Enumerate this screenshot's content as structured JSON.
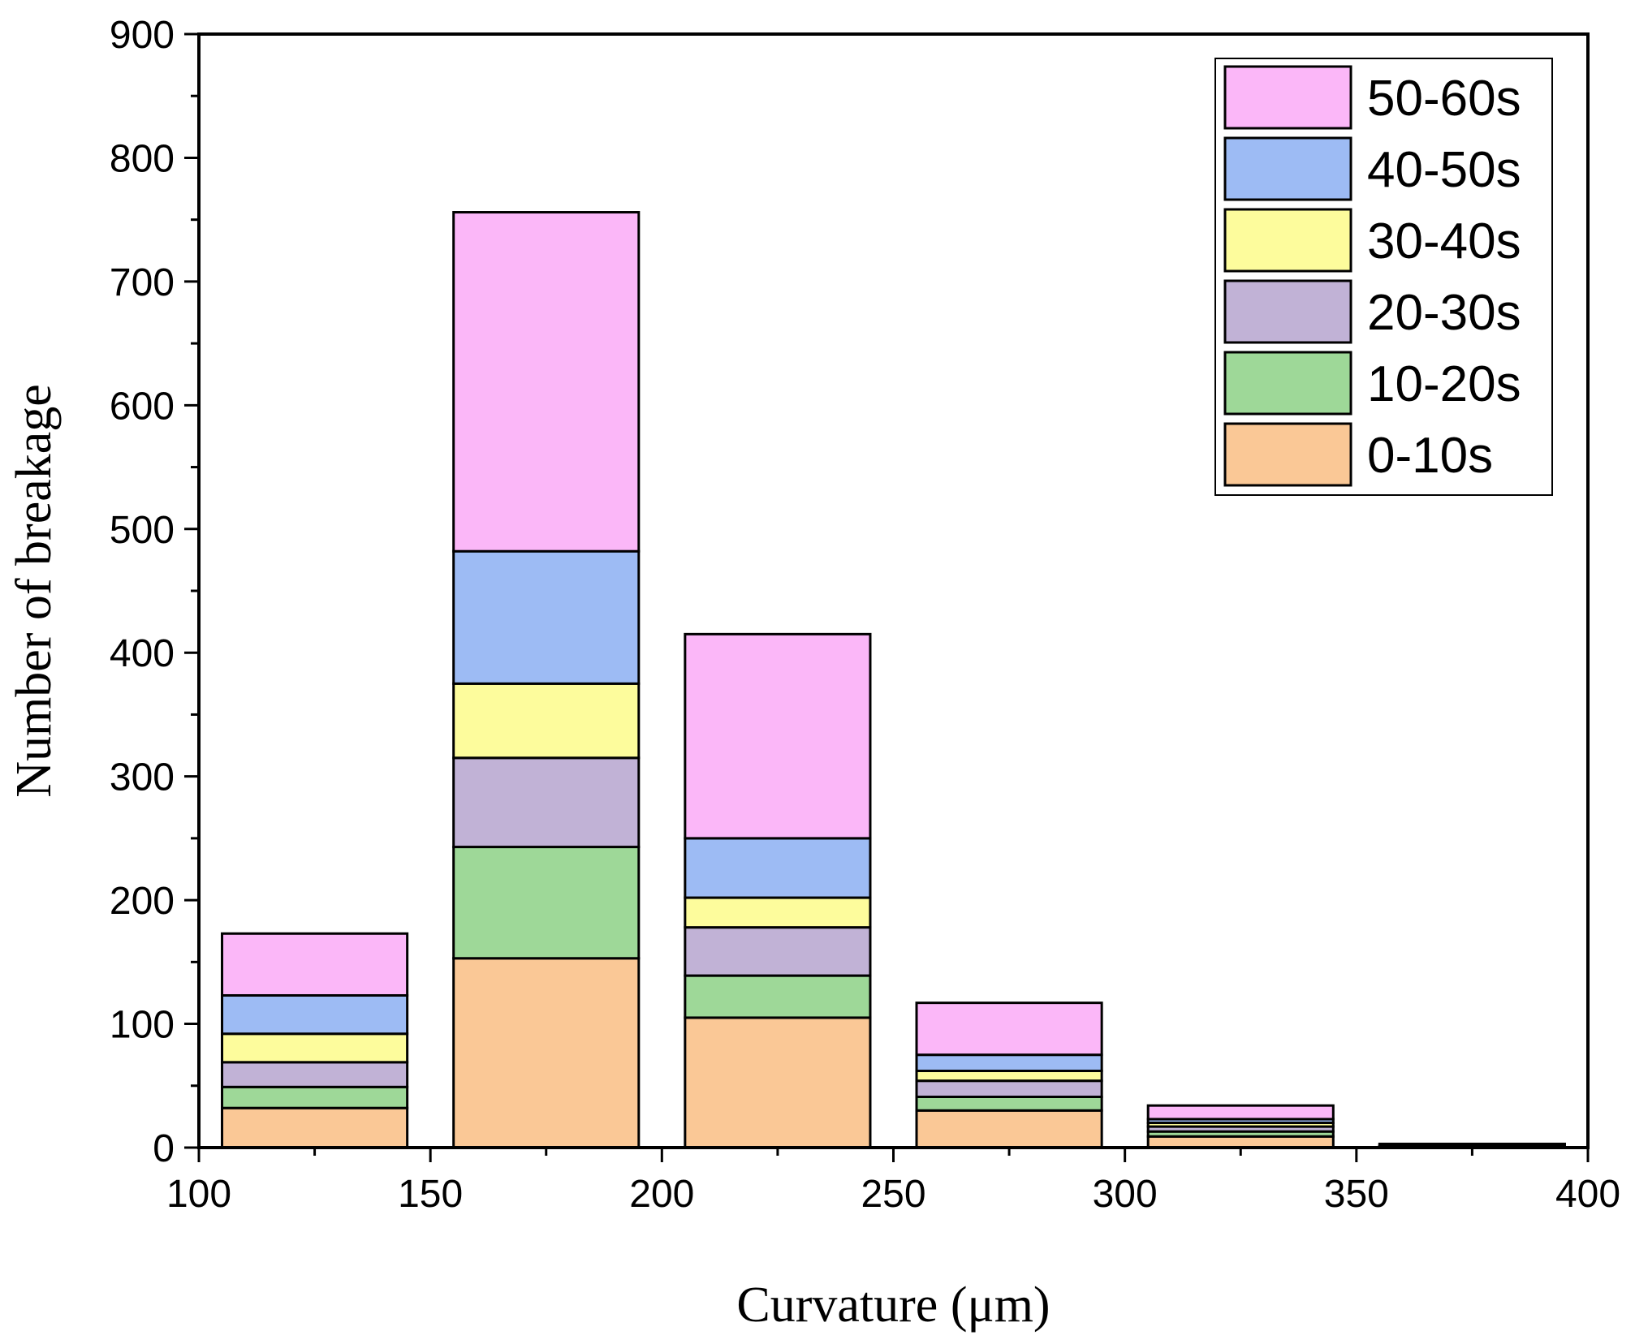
{
  "chart_data": {
    "type": "bar",
    "stacked": true,
    "title": "",
    "xlabel": "Curvature (μm)",
    "ylabel": "Number of breakage",
    "xlim": [
      100,
      400
    ],
    "ylim": [
      0,
      900
    ],
    "xticks": [
      100,
      150,
      200,
      250,
      300,
      350,
      400
    ],
    "yticks": [
      0,
      100,
      200,
      300,
      400,
      500,
      600,
      700,
      800,
      900
    ],
    "bins": [
      [
        105,
        145
      ],
      [
        155,
        195
      ],
      [
        205,
        245
      ],
      [
        255,
        295
      ],
      [
        305,
        345
      ],
      [
        355,
        395
      ]
    ],
    "series": [
      {
        "name": "0-10s",
        "color": "#fac896",
        "values": [
          32,
          153,
          105,
          30,
          9,
          1
        ]
      },
      {
        "name": "10-20s",
        "color": "#9ed898",
        "values": [
          17,
          90,
          34,
          11,
          4,
          0
        ]
      },
      {
        "name": "20-30s",
        "color": "#c1b2d6",
        "values": [
          20,
          72,
          39,
          13,
          4,
          0
        ]
      },
      {
        "name": "30-40s",
        "color": "#fdfc9c",
        "values": [
          23,
          60,
          24,
          8,
          3,
          0
        ]
      },
      {
        "name": "40-50s",
        "color": "#9dbbf4",
        "values": [
          31,
          107,
          48,
          13,
          3,
          1
        ]
      },
      {
        "name": "50-60s",
        "color": "#fbb7f8",
        "values": [
          50,
          274,
          165,
          42,
          11,
          1
        ]
      }
    ],
    "legend_position": "top-right",
    "grid": false
  }
}
